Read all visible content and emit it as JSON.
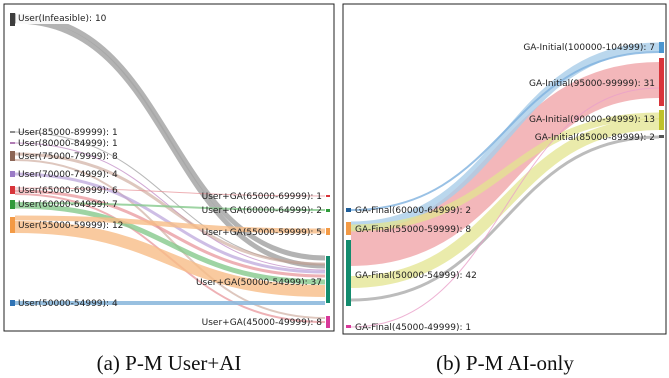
{
  "panels": [
    {
      "caption": "(a) P-M User+AI",
      "left_nodes": [
        {
          "label": "User(Infeasible): 10",
          "value": 10,
          "color": "#3d3d3d"
        },
        {
          "label": "User(85000-89999): 1",
          "value": 1,
          "color": "#8d8d8d"
        },
        {
          "label": "User(80000-84999): 1",
          "value": 1,
          "color": "#b07cb4"
        },
        {
          "label": "User(75000-79999): 8",
          "value": 8,
          "color": "#8c6656"
        },
        {
          "label": "User(70000-74999): 4",
          "value": 4,
          "color": "#9b7cc6"
        },
        {
          "label": "User(65000-69999): 6",
          "value": 6,
          "color": "#d8343a"
        },
        {
          "label": "User(60000-64999): 7",
          "value": 7,
          "color": "#2f9b3a"
        },
        {
          "label": "User(55000-59999): 12",
          "value": 12,
          "color": "#f39a45"
        },
        {
          "label": "User(50000-54999): 4",
          "value": 4,
          "color": "#2f73b5"
        }
      ],
      "right_nodes": [
        {
          "label": "User+GA(65000-69999): 1",
          "value": 1,
          "color": "#d8343a"
        },
        {
          "label": "User+GA(60000-64999): 2",
          "value": 2,
          "color": "#2f9b3a"
        },
        {
          "label": "User+GA(55000-59999): 5",
          "value": 5,
          "color": "#f39a45"
        },
        {
          "label": "User+GA(50000-54999): 37",
          "value": 37,
          "color": "#138c6e"
        },
        {
          "label": "User+GA(45000-49999): 8",
          "value": 8,
          "color": "#d8399a"
        }
      ]
    },
    {
      "caption": "(b) P-M AI-only",
      "left_nodes": [
        {
          "label": "GA-Final(60000-64999): 2",
          "value": 2,
          "color": "#1f5f9a"
        },
        {
          "label": "GA-Final(55000-59999): 8",
          "value": 8,
          "color": "#f39a45"
        },
        {
          "label": "GA-Final(50000-54999): 42",
          "value": 42,
          "color": "#138c6e"
        },
        {
          "label": "GA-Final(45000-49999): 1",
          "value": 1,
          "color": "#d8399a"
        }
      ],
      "right_nodes": [
        {
          "label": "GA-Initial(100000-104999): 7",
          "value": 7,
          "color": "#4b95cf"
        },
        {
          "label": "GA-Initial(95000-99999): 31",
          "value": 31,
          "color": "#d8343a"
        },
        {
          "label": "GA-Initial(90000-94999): 13",
          "value": 13,
          "color": "#bfc12a"
        },
        {
          "label": "GA-Initial(85000-89999): 2",
          "value": 2,
          "color": "#555555"
        }
      ]
    }
  ]
}
